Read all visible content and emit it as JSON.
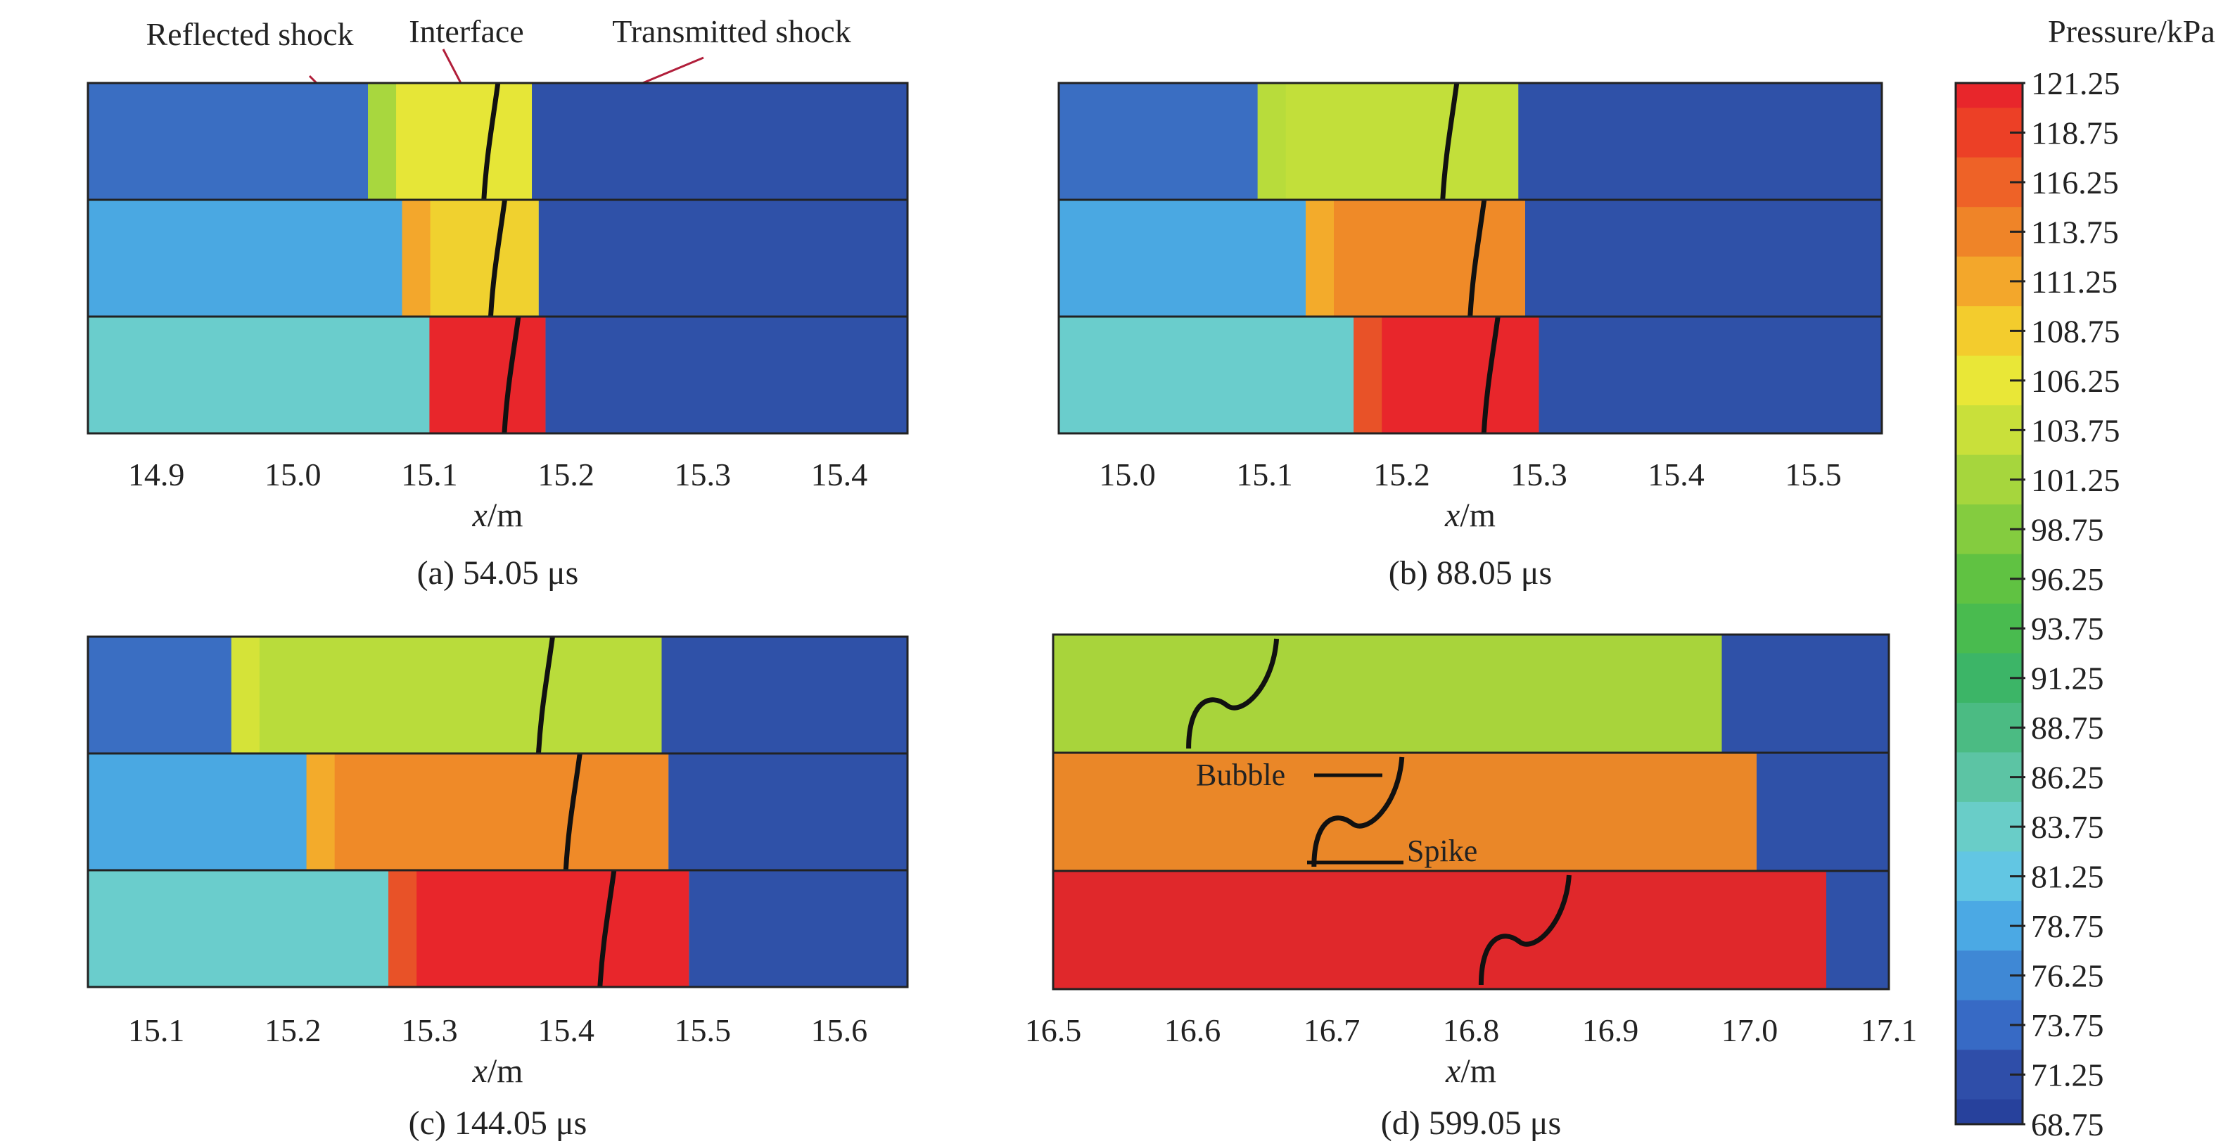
{
  "colorbar": {
    "title": "Pressure/kPa",
    "ticks": [
      "121.25",
      "118.75",
      "116.25",
      "113.75",
      "111.25",
      "108.75",
      "106.25",
      "103.75",
      "101.25",
      "98.75",
      "96.25",
      "93.75",
      "91.25",
      "88.75",
      "86.25",
      "83.75",
      "81.25",
      "78.75",
      "76.25",
      "73.75",
      "71.25",
      "68.75"
    ],
    "colors": [
      "#e8262b",
      "#ec4026",
      "#ee6227",
      "#ef8428",
      "#f3a72b",
      "#f3cc2d",
      "#e9e737",
      "#c9e03a",
      "#a6d63d",
      "#84cc3f",
      "#60c242",
      "#49bb4f",
      "#3cb567",
      "#4bbb83",
      "#5cc4a4",
      "#69cdc8",
      "#62c6e3",
      "#4ba9e4",
      "#3f88d5",
      "#376ac5",
      "#2f4ea9",
      "#27419c"
    ]
  },
  "annotations": {
    "reflected_shock": "Reflected shock",
    "interface": "Interface",
    "transmitted_shock": "Transmitted shock",
    "bubble": "Bubble",
    "spike": "Spike"
  },
  "panels": [
    {
      "caption": "(a) 54.05 μs",
      "xlabel_var": "x",
      "xlabel_unit": "/m",
      "xrange": [
        14.85,
        15.45
      ],
      "xticks": [
        "14.9",
        "15.0",
        "15.1",
        "15.2",
        "15.3",
        "15.4"
      ],
      "xtick_values": [
        14.9,
        15.0,
        15.1,
        15.2,
        15.3,
        15.4
      ],
      "rows": [
        {
          "bg_color": "#3a6ec2",
          "shocked_from": 15.055,
          "shocked_to": 15.175,
          "shocked_color": "#e6e637",
          "edge_color": "#9cd33f",
          "interface_at": 15.145,
          "ambient_color": "#2f51a8"
        },
        {
          "bg_color": "#4aa8e2",
          "shocked_from": 15.08,
          "shocked_to": 15.18,
          "shocked_color": "#f0d12f",
          "edge_color": "#f3a02b",
          "interface_at": 15.15,
          "ambient_color": "#2f51a8"
        },
        {
          "bg_color": "#6acdcc",
          "shocked_from": 15.1,
          "shocked_to": 15.185,
          "shocked_color": "#e8262b",
          "edge_color": "#e8262b",
          "interface_at": 15.16,
          "ambient_color": "#2f51a8"
        }
      ]
    },
    {
      "caption": "(b) 88.05 μs",
      "xlabel_var": "x",
      "xlabel_unit": "/m",
      "xrange": [
        14.95,
        15.55
      ],
      "xticks": [
        "15.0",
        "15.1",
        "15.2",
        "15.3",
        "15.4",
        "15.5"
      ],
      "xtick_values": [
        15.0,
        15.1,
        15.2,
        15.3,
        15.4,
        15.5
      ],
      "rows": [
        {
          "bg_color": "#3a6ec2",
          "shocked_from": 15.095,
          "shocked_to": 15.285,
          "shocked_color": "#c2df3a",
          "edge_color": "#b6dc3c",
          "interface_at": 15.235,
          "ambient_color": "#2f51a8"
        },
        {
          "bg_color": "#4aa8e2",
          "shocked_from": 15.13,
          "shocked_to": 15.29,
          "shocked_color": "#ef8a28",
          "edge_color": "#f3b02c",
          "interface_at": 15.255,
          "ambient_color": "#2f51a8"
        },
        {
          "bg_color": "#6acdcc",
          "shocked_from": 15.165,
          "shocked_to": 15.3,
          "shocked_color": "#e8262b",
          "edge_color": "#e85a28",
          "interface_at": 15.265,
          "ambient_color": "#2f51a8"
        }
      ]
    },
    {
      "caption": "(c) 144.05 μs",
      "xlabel_var": "x",
      "xlabel_unit": "/m",
      "xrange": [
        15.05,
        15.65
      ],
      "xticks": [
        "15.1",
        "15.2",
        "15.3",
        "15.4",
        "15.5",
        "15.6"
      ],
      "xtick_values": [
        15.1,
        15.2,
        15.3,
        15.4,
        15.5,
        15.6
      ],
      "rows": [
        {
          "bg_color": "#3a6ec2",
          "shocked_from": 15.155,
          "shocked_to": 15.47,
          "shocked_color": "#b9dc3b",
          "edge_color": "#d9e438",
          "interface_at": 15.385,
          "ambient_color": "#2f51a8"
        },
        {
          "bg_color": "#4aa8e2",
          "shocked_from": 15.21,
          "shocked_to": 15.475,
          "shocked_color": "#ef8a28",
          "edge_color": "#f3b02c",
          "interface_at": 15.405,
          "ambient_color": "#2f51a8"
        },
        {
          "bg_color": "#6acdcc",
          "shocked_from": 15.27,
          "shocked_to": 15.49,
          "shocked_color": "#e8262b",
          "edge_color": "#e85a28",
          "interface_at": 15.43,
          "ambient_color": "#2f51a8"
        }
      ]
    },
    {
      "caption": "(d) 599.05 μs",
      "xlabel_var": "x",
      "xlabel_unit": "/m",
      "xrange": [
        16.5,
        17.1
      ],
      "xticks": [
        "16.5",
        "16.6",
        "16.7",
        "16.8",
        "16.9",
        "17.0",
        "17.1"
      ],
      "xtick_values": [
        16.5,
        16.6,
        16.7,
        16.8,
        16.9,
        17.0,
        17.1
      ],
      "rows": [
        {
          "bg_color": "#a8d43b",
          "shocked_from": 16.5,
          "shocked_to": 16.98,
          "shocked_color": "#a8d43b",
          "edge_color": "#a8d43b",
          "interface_at": 16.62,
          "ambient_color": "#2f51a8"
        },
        {
          "bg_color": "#ea8728",
          "shocked_from": 16.5,
          "shocked_to": 17.005,
          "shocked_color": "#ea8728",
          "edge_color": "#ea8728",
          "interface_at": 16.71,
          "ambient_color": "#2f51a8"
        },
        {
          "bg_color": "#e0282b",
          "shocked_from": 16.5,
          "shocked_to": 17.055,
          "shocked_color": "#e0282b",
          "edge_color": "#e0282b",
          "interface_at": 16.83,
          "ambient_color": "#2f51a8"
        }
      ]
    }
  ]
}
